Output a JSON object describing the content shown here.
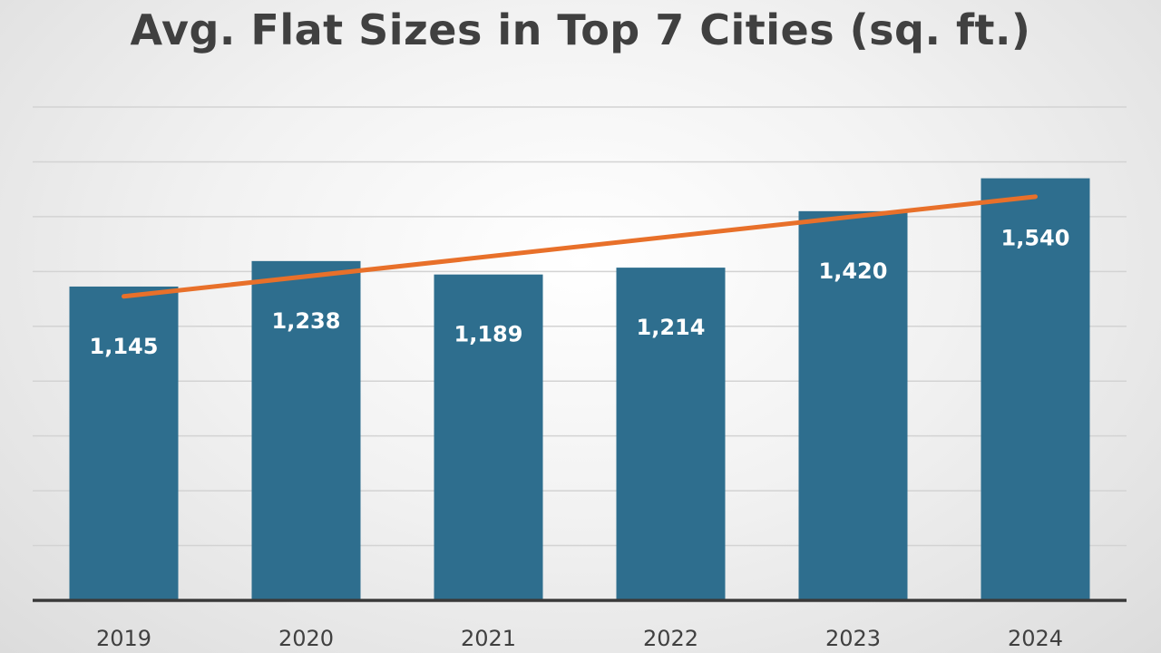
{
  "chart_data": {
    "type": "bar",
    "title": "Avg. Flat Sizes in Top 7 Cities (sq. ft.)",
    "xlabel": "",
    "ylabel": "",
    "categories": [
      "2019",
      "2020",
      "2021",
      "2022",
      "2023",
      "2024"
    ],
    "values": [
      1145,
      1238,
      1189,
      1214,
      1420,
      1540
    ],
    "data_labels": [
      "1,145",
      "1,238",
      "1,189",
      "1,214",
      "1,420",
      "1,540"
    ],
    "ylim": [
      0,
      1800
    ],
    "grid": true,
    "legend": "none",
    "trendline": {
      "type": "linear",
      "color": "#e8702a"
    },
    "colors": {
      "bar": "#2e6e8e",
      "trendline": "#e8702a",
      "title": "#404040",
      "grid": "#d3d3d3"
    }
  }
}
